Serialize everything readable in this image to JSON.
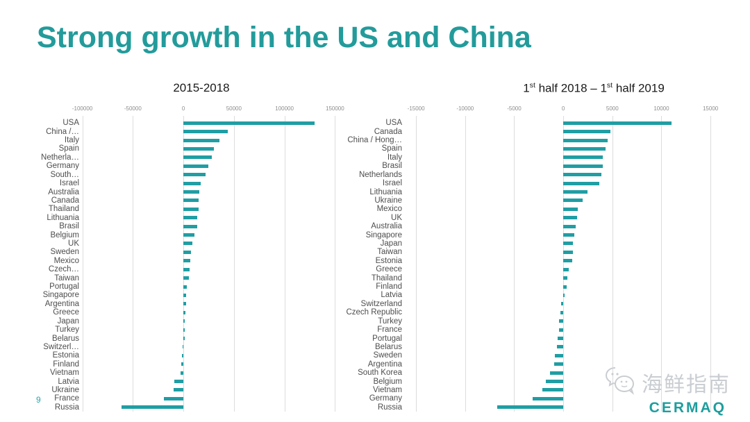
{
  "title": "Strong growth in the US and China",
  "page_number": "9",
  "watermark": {
    "text": "海鲜指南",
    "logo": "CERMAQ"
  },
  "colors": {
    "title_teal": "#239b9b",
    "bar_teal": "#1f9ea4",
    "grid_gray": "#dcdcdc",
    "label_gray": "#4d4d4d",
    "tick_gray": "#8c8c8c",
    "watermark_gray": "#c9cdd1"
  },
  "chart_data": [
    {
      "type": "bar",
      "orientation": "horizontal",
      "title": "2015-2018",
      "title_runs": [
        {
          "text": "2015-2018"
        }
      ],
      "xlabel": "",
      "ylabel": "",
      "xlim": [
        -110000,
        158000
      ],
      "ticks": [
        -100000,
        -50000,
        0,
        50000,
        100000,
        150000
      ],
      "grid": true,
      "categories": [
        "USA",
        "China /…",
        "Italy",
        "Spain",
        "Netherla…",
        "Germany",
        "South…",
        "Israel",
        "Australia",
        "Canada",
        "Thailand",
        "Lithuania",
        "Brasil",
        "Belgium",
        "UK",
        "Sweden",
        "Mexico",
        "Czech…",
        "Taiwan",
        "Portugal",
        "Singapore",
        "Argentina",
        "Greece",
        "Japan",
        "Turkey",
        "Belarus",
        "Switzerl…",
        "Estonia",
        "Finland",
        "Vietnam",
        "Latvia",
        "Ukraine",
        "France",
        "Russia"
      ],
      "values": [
        130000,
        44000,
        36000,
        30000,
        28000,
        25000,
        22000,
        17000,
        16000,
        15000,
        14800,
        14000,
        13800,
        11000,
        9000,
        7500,
        6500,
        6000,
        5500,
        3500,
        3000,
        2500,
        2000,
        1200,
        600,
        200,
        -1000,
        -1500,
        -2000,
        -2500,
        -9000,
        -10000,
        -19000,
        -61000
      ]
    },
    {
      "type": "bar",
      "orientation": "horizontal",
      "title": "1st half 2018 – 1st half 2019",
      "title_runs": [
        {
          "text": "1"
        },
        {
          "text": "st",
          "sup": true
        },
        {
          "text": " half 2018 – 1"
        },
        {
          "text": "st",
          "sup": true
        },
        {
          "text": " half 2019"
        }
      ],
      "xlabel": "",
      "ylabel": "",
      "xlim": [
        -16000,
        15700
      ],
      "ticks": [
        -15000,
        -10000,
        -5000,
        0,
        5000,
        10000,
        15000
      ],
      "grid": true,
      "categories": [
        "USA",
        "Canada",
        "China / Hong…",
        "Spain",
        "Italy",
        "Brasil",
        "Netherlands",
        "Israel",
        "Lithuania",
        "Ukraine",
        "Mexico",
        "UK",
        "Australia",
        "Singapore",
        "Japan",
        "Taiwan",
        "Estonia",
        "Greece",
        "Thailand",
        "Finland",
        "Latvia",
        "Switzerland",
        "Czech Republic",
        "Turkey",
        "France",
        "Portugal",
        "Belarus",
        "Sweden",
        "Argentina",
        "South Korea",
        "Belgium",
        "Vietnam",
        "Germany",
        "Russia"
      ],
      "values": [
        11000,
        4800,
        4500,
        4300,
        4050,
        4000,
        3900,
        3700,
        2500,
        2000,
        1450,
        1400,
        1300,
        1150,
        1000,
        950,
        900,
        550,
        450,
        350,
        150,
        -250,
        -300,
        -400,
        -450,
        -550,
        -650,
        -850,
        -950,
        -1350,
        -1800,
        -2100,
        -3100,
        -6700
      ]
    }
  ]
}
